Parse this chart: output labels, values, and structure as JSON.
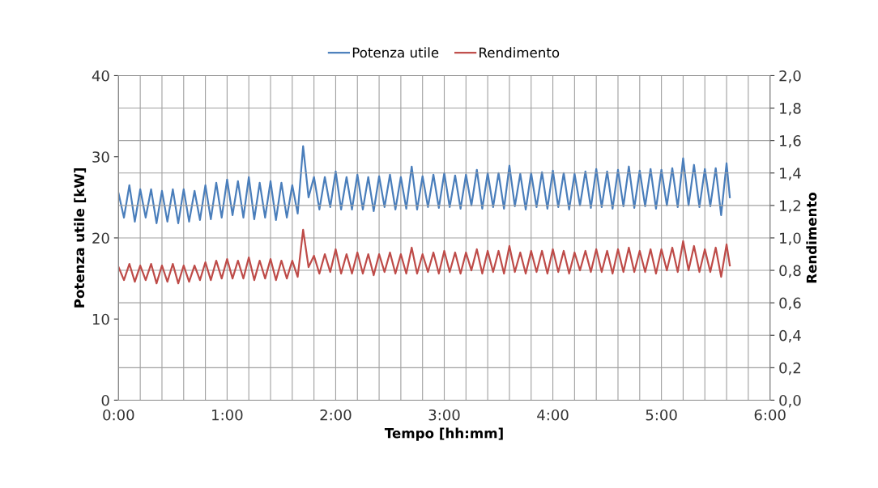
{
  "chart_data": {
    "type": "line",
    "xlabel": "Tempo [hh:mm]",
    "ylabel": "Potenza utile [kW]",
    "y2label": "Rendimento",
    "x": [
      0,
      0.05,
      0.1,
      0.15,
      0.2,
      0.25,
      0.3,
      0.35,
      0.4,
      0.45,
      0.5,
      0.55,
      0.6,
      0.65,
      0.7,
      0.75,
      0.8,
      0.85,
      0.9,
      0.95,
      1.0,
      1.05,
      1.1,
      1.15,
      1.2,
      1.25,
      1.3,
      1.35,
      1.4,
      1.45,
      1.5,
      1.55,
      1.6,
      1.65,
      1.7,
      1.75,
      1.8,
      1.85,
      1.9,
      1.95,
      2.0,
      2.05,
      2.1,
      2.15,
      2.2,
      2.25,
      2.3,
      2.35,
      2.4,
      2.45,
      2.5,
      2.55,
      2.6,
      2.65,
      2.7,
      2.75,
      2.8,
      2.85,
      2.9,
      2.95,
      3.0,
      3.05,
      3.1,
      3.15,
      3.2,
      3.25,
      3.3,
      3.35,
      3.4,
      3.45,
      3.5,
      3.55,
      3.6,
      3.65,
      3.7,
      3.75,
      3.8,
      3.85,
      3.9,
      3.95,
      4.0,
      4.05,
      4.1,
      4.15,
      4.2,
      4.25,
      4.3,
      4.35,
      4.4,
      4.45,
      4.5,
      4.55,
      4.6,
      4.65,
      4.7,
      4.75,
      4.8,
      4.85,
      4.9,
      4.95,
      5.0,
      5.05,
      5.1,
      5.15,
      5.2,
      5.25,
      5.3,
      5.35,
      5.4,
      5.45,
      5.5,
      5.55,
      5.6,
      5.63
    ],
    "series": [
      {
        "name": "Potenza utile",
        "color": "#4a7ebb",
        "values": [
          25.5,
          22.5,
          26.5,
          22,
          26,
          22.5,
          26,
          21.8,
          25.8,
          22,
          26,
          21.8,
          26,
          22,
          25.8,
          22.2,
          26.5,
          22.3,
          26.8,
          22.5,
          27.2,
          22.8,
          27,
          22.5,
          27.5,
          22.3,
          26.8,
          22.5,
          27,
          22.2,
          26.8,
          22.5,
          26.5,
          23,
          31.3,
          25,
          27.5,
          23.5,
          27.5,
          23.8,
          28.2,
          23.5,
          27.5,
          23.5,
          27.8,
          23.5,
          27.5,
          23.3,
          27.6,
          23.8,
          27.8,
          23.5,
          27.5,
          23.6,
          28.8,
          23.5,
          27.6,
          23.8,
          27.8,
          23.7,
          28,
          23.8,
          27.7,
          23.6,
          27.8,
          24,
          28.4,
          23.6,
          28,
          23.8,
          28,
          23.6,
          28.9,
          23.9,
          27.9,
          23.5,
          28,
          23.8,
          28.1,
          23.6,
          28.3,
          23.8,
          28,
          23.5,
          27.9,
          24,
          28.2,
          23.7,
          28.5,
          23.8,
          28.2,
          23.6,
          28.4,
          23.9,
          28.8,
          23.7,
          28.3,
          23.9,
          28.5,
          23.6,
          28.4,
          24,
          28.6,
          23.8,
          29.8,
          24,
          29,
          23.8,
          28.5,
          23.9,
          28.6,
          22.8,
          29.2,
          25
        ]
      },
      {
        "name": "Rendimento",
        "color": "#be4b48",
        "axis": "y2",
        "values": [
          0.82,
          0.74,
          0.84,
          0.73,
          0.83,
          0.74,
          0.84,
          0.72,
          0.83,
          0.73,
          0.84,
          0.72,
          0.83,
          0.73,
          0.83,
          0.74,
          0.85,
          0.74,
          0.86,
          0.75,
          0.87,
          0.75,
          0.86,
          0.75,
          0.88,
          0.74,
          0.86,
          0.75,
          0.87,
          0.74,
          0.86,
          0.75,
          0.86,
          0.76,
          1.05,
          0.82,
          0.89,
          0.78,
          0.9,
          0.79,
          0.93,
          0.78,
          0.9,
          0.78,
          0.91,
          0.78,
          0.9,
          0.77,
          0.9,
          0.79,
          0.91,
          0.78,
          0.9,
          0.78,
          0.94,
          0.78,
          0.9,
          0.79,
          0.91,
          0.78,
          0.92,
          0.79,
          0.91,
          0.78,
          0.91,
          0.8,
          0.93,
          0.78,
          0.92,
          0.79,
          0.92,
          0.78,
          0.95,
          0.79,
          0.91,
          0.78,
          0.92,
          0.79,
          0.92,
          0.78,
          0.93,
          0.79,
          0.92,
          0.78,
          0.91,
          0.8,
          0.92,
          0.79,
          0.93,
          0.79,
          0.92,
          0.78,
          0.93,
          0.79,
          0.94,
          0.79,
          0.92,
          0.79,
          0.93,
          0.78,
          0.93,
          0.8,
          0.94,
          0.79,
          0.98,
          0.8,
          0.95,
          0.79,
          0.93,
          0.79,
          0.94,
          0.76,
          0.96,
          0.83
        ]
      }
    ],
    "xlim": [
      0,
      6
    ],
    "xticks": [
      {
        "value": 0,
        "label": "0:00"
      },
      {
        "value": 0.2,
        "label": null
      },
      {
        "value": 0.4,
        "label": null
      },
      {
        "value": 0.6,
        "label": null
      },
      {
        "value": 0.8,
        "label": null
      },
      {
        "value": 1,
        "label": "1:00"
      },
      {
        "value": 1.2,
        "label": null
      },
      {
        "value": 1.4,
        "label": null
      },
      {
        "value": 1.6,
        "label": null
      },
      {
        "value": 1.8,
        "label": null
      },
      {
        "value": 2,
        "label": "2:00"
      },
      {
        "value": 2.2,
        "label": null
      },
      {
        "value": 2.4,
        "label": null
      },
      {
        "value": 2.6,
        "label": null
      },
      {
        "value": 2.8,
        "label": null
      },
      {
        "value": 3,
        "label": "3:00"
      },
      {
        "value": 3.2,
        "label": null
      },
      {
        "value": 3.4,
        "label": null
      },
      {
        "value": 3.6,
        "label": null
      },
      {
        "value": 3.8,
        "label": null
      },
      {
        "value": 4,
        "label": "4:00"
      },
      {
        "value": 4.2,
        "label": null
      },
      {
        "value": 4.4,
        "label": null
      },
      {
        "value": 4.6,
        "label": null
      },
      {
        "value": 4.8,
        "label": null
      },
      {
        "value": 5,
        "label": "5:00"
      },
      {
        "value": 5.2,
        "label": null
      },
      {
        "value": 5.4,
        "label": null
      },
      {
        "value": 5.6,
        "label": null
      },
      {
        "value": 5.8,
        "label": null
      },
      {
        "value": 6,
        "label": "6:00"
      }
    ],
    "ylim": [
      0,
      40
    ],
    "yticks": [
      0,
      10,
      20,
      30,
      40
    ],
    "y2lim": [
      0,
      2
    ],
    "y2ticks": [
      {
        "value": 0,
        "label": "0,0"
      },
      {
        "value": 0.2,
        "label": "0,2"
      },
      {
        "value": 0.4,
        "label": "0,4"
      },
      {
        "value": 0.6,
        "label": "0,6"
      },
      {
        "value": 0.8,
        "label": "0,8"
      },
      {
        "value": 1.0,
        "label": "1,0"
      },
      {
        "value": 1.2,
        "label": "1,2"
      },
      {
        "value": 1.4,
        "label": "1,4"
      },
      {
        "value": 1.6,
        "label": "1,6"
      },
      {
        "value": 1.8,
        "label": "1,8"
      },
      {
        "value": 2.0,
        "label": "2,0"
      }
    ],
    "grid": true,
    "legend": "top",
    "marker": "none",
    "line_style": "solid"
  }
}
